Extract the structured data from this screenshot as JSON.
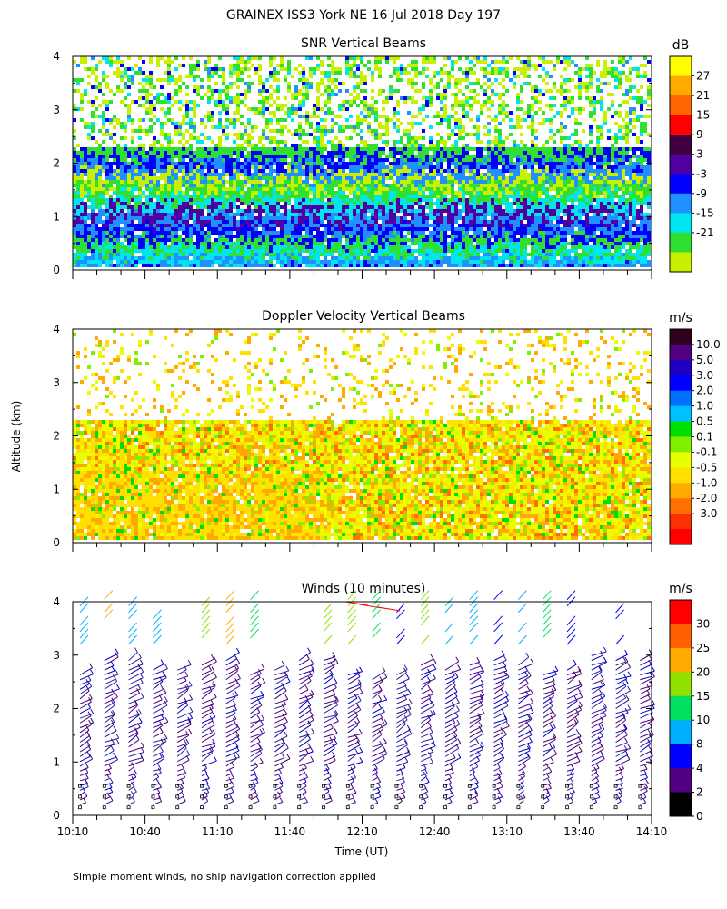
{
  "title": "GRAINEX ISS3 York NE  16 Jul 2018 Day 197",
  "y_axis_label": "Altitude (km)",
  "x_axis_label": "Time (UT)",
  "footnote": "Simple moment winds, no ship navigation correction applied",
  "chart_data": [
    {
      "type": "heatmap",
      "title": "SNR Vertical Beams",
      "xlabel": "",
      "ylabel": "Altitude (km)",
      "y_ticks": [
        "0",
        "1",
        "2",
        "3",
        "4"
      ],
      "ylim": [
        0,
        4
      ],
      "x_ticks": [],
      "legend": {
        "unit": "dB",
        "labels": [
          "27",
          "21",
          "15",
          "9",
          "3",
          "-3",
          "-9",
          "-15",
          "-21"
        ],
        "colors": [
          "#ffff00",
          "#ffaa00",
          "#ff6600",
          "#ff0000",
          "#400040",
          "#5000a0",
          "#0000ff",
          "#1e90ff",
          "#00e5ee",
          "#30e030",
          "#c8f000"
        ]
      }
    },
    {
      "type": "heatmap",
      "title": "Doppler Velocity Vertical Beams",
      "xlabel": "",
      "ylabel": "Altitude (km)",
      "y_ticks": [
        "0",
        "1",
        "2",
        "3",
        "4"
      ],
      "ylim": [
        0,
        4
      ],
      "x_ticks": [],
      "legend": {
        "unit": "m/s",
        "labels": [
          "10.0",
          "5.0",
          "3.0",
          "2.0",
          "1.0",
          "0.5",
          "0.1",
          "-0.1",
          "-0.5",
          "-1.0",
          "-2.0",
          "-3.0"
        ],
        "colors": [
          "#300020",
          "#500080",
          "#2000c0",
          "#0000ff",
          "#0070ff",
          "#00c0ff",
          "#00e000",
          "#80f000",
          "#e8ff00",
          "#ffe000",
          "#ffaa00",
          "#ff7000",
          "#ff3000",
          "#ff0000"
        ]
      }
    },
    {
      "type": "scatter",
      "title": "Winds (10 minutes)",
      "xlabel": "Time (UT)",
      "ylabel": "Altitude (km)",
      "y_ticks": [
        "0",
        "1",
        "2",
        "3",
        "4"
      ],
      "ylim": [
        0,
        4
      ],
      "x_ticks": [
        "10:10",
        "10:40",
        "11:10",
        "11:40",
        "12:10",
        "12:40",
        "13:10",
        "13:40",
        "14:10"
      ],
      "legend": {
        "unit": "m/s",
        "labels": [
          "30",
          "25",
          "20",
          "15",
          "10",
          "8",
          "4",
          "2",
          "0"
        ],
        "colors": [
          "#ff0000",
          "#ff6000",
          "#ffaa00",
          "#90e000",
          "#00e060",
          "#00b0ff",
          "#0000ff",
          "#500080",
          "#000000"
        ]
      }
    }
  ]
}
